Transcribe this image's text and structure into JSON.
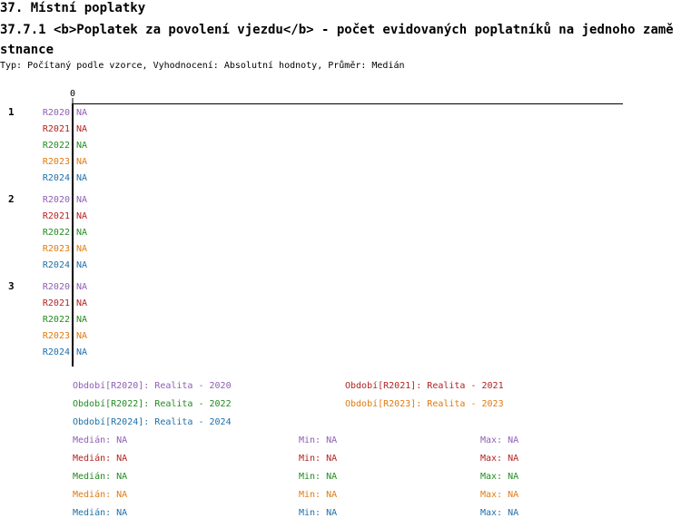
{
  "header": {
    "section_title": "37. Místní poplatky",
    "chart_title": "37.7.1 <b>Poplatek za povolení vjezdu</b> - počet evidovaných poplatníků na jednoho zaměstnance",
    "subtitle": "Typ: Počítaný podle vzorce, Vyhodnocení: Absolutní hodnoty, Průměr: Medián"
  },
  "colors": {
    "R2020": "#8e5fb3",
    "R2021": "#b22222",
    "R2022": "#228b22",
    "R2023": "#e07b10",
    "R2024": "#1f6fa8"
  },
  "chart_data": {
    "type": "bar",
    "orientation": "horizontal",
    "axis_tick_label": "0",
    "groups": [
      "1",
      "2",
      "3"
    ],
    "series": [
      {
        "name": "R2020",
        "values": [
          "NA",
          "NA",
          "NA"
        ]
      },
      {
        "name": "R2021",
        "values": [
          "NA",
          "NA",
          "NA"
        ]
      },
      {
        "name": "R2022",
        "values": [
          "NA",
          "NA",
          "NA"
        ]
      },
      {
        "name": "R2023",
        "values": [
          "NA",
          "NA",
          "NA"
        ]
      },
      {
        "name": "R2024",
        "values": [
          "NA",
          "NA",
          "NA"
        ]
      }
    ],
    "legend": [
      {
        "series": "R2020",
        "text": "Období[R2020]: Realita - 2020"
      },
      {
        "series": "R2021",
        "text": "Období[R2021]: Realita - 2021"
      },
      {
        "series": "R2022",
        "text": "Období[R2022]: Realita - 2022"
      },
      {
        "series": "R2023",
        "text": "Období[R2023]: Realita - 2023"
      },
      {
        "series": "R2024",
        "text": "Období[R2024]: Realita - 2024"
      }
    ],
    "stats": [
      {
        "series": "R2020",
        "median": "Medián: NA",
        "min": "Min: NA",
        "max": "Max: NA"
      },
      {
        "series": "R2021",
        "median": "Medián: NA",
        "min": "Min: NA",
        "max": "Max: NA"
      },
      {
        "series": "R2022",
        "median": "Medián: NA",
        "min": "Min: NA",
        "max": "Max: NA"
      },
      {
        "series": "R2023",
        "median": "Medián: NA",
        "min": "Min: NA",
        "max": "Max: NA"
      },
      {
        "series": "R2024",
        "median": "Medián: NA",
        "min": "Min: NA",
        "max": "Max: NA"
      }
    ]
  }
}
